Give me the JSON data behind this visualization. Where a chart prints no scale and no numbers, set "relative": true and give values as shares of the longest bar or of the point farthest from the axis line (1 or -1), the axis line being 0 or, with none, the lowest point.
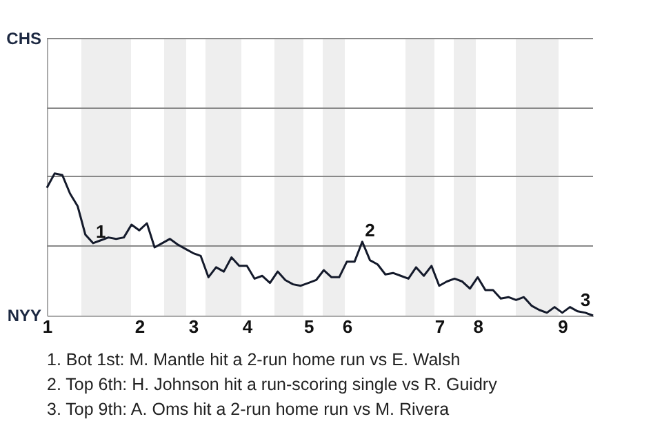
{
  "chart_data": {
    "type": "line",
    "categories": [
      "1",
      null,
      null,
      null,
      null,
      null,
      null,
      null,
      null,
      null,
      null,
      null,
      "2",
      null,
      null,
      null,
      null,
      null,
      null,
      "3",
      null,
      null,
      null,
      null,
      null,
      null,
      "4",
      null,
      null,
      null,
      null,
      null,
      null,
      null,
      "5",
      null,
      null,
      null,
      null,
      "6",
      null,
      null,
      null,
      null,
      null,
      null,
      null,
      null,
      null,
      null,
      null,
      "7",
      null,
      null,
      null,
      null,
      "8",
      null,
      null,
      null,
      null,
      null,
      null,
      null,
      null,
      null,
      null,
      "9",
      null,
      null,
      null,
      null
    ],
    "relative": true,
    "series": [
      {
        "color": "#141a2b",
        "values": [
          0.9,
          1,
          0.99,
          0.86,
          0.77,
          0.57,
          0.51,
          0.53,
          0.55,
          0.54,
          0.55,
          0.64,
          0.6,
          0.65,
          0.48,
          0.51,
          0.54,
          0.5,
          0.47,
          0.44,
          0.42,
          0.27,
          0.34,
          0.31,
          0.41,
          0.35,
          0.35,
          0.26,
          0.28,
          0.23,
          0.31,
          0.25,
          0.22,
          0.21,
          0.23,
          0.25,
          0.32,
          0.27,
          0.27,
          0.38,
          0.38,
          0.52,
          0.39,
          0.36,
          0.29,
          0.3,
          0.28,
          0.26,
          0.34,
          0.28,
          0.35,
          0.21,
          0.24,
          0.26,
          0.24,
          0.19,
          0.27,
          0.18,
          0.18,
          0.12,
          0.13,
          0.11,
          0.13,
          0.07,
          0.04,
          0.02,
          0.06,
          0.02,
          0.06,
          0.03,
          0.02,
          0
        ]
      }
    ],
    "ref_lines": [
      {
        "axis": "y",
        "value": 0.49,
        "color": "#888888"
      },
      {
        "axis": "y",
        "value": 0.98,
        "color": "#888888"
      },
      {
        "axis": "y",
        "value": 1.46,
        "color": "#888888"
      },
      {
        "axis": "y",
        "value": 1.95,
        "color": "#888888"
      }
    ],
    "annotations": [
      "CHS",
      "NYY",
      {
        "text": "1",
        "y": 0.51
      },
      {
        "text": "2",
        "y": 0.52
      },
      {
        "text": "3",
        "y": 0.03
      },
      "1. Bot 1st: M. Mantle hit a 2-run home run vs E. Walsh",
      "2. Top 6th: H. Johnson hit a run-scoring single vs R. Guidry",
      "3. Top 9th: A. Oms hit a 2-run home run vs M. Rivera"
    ]
  }
}
